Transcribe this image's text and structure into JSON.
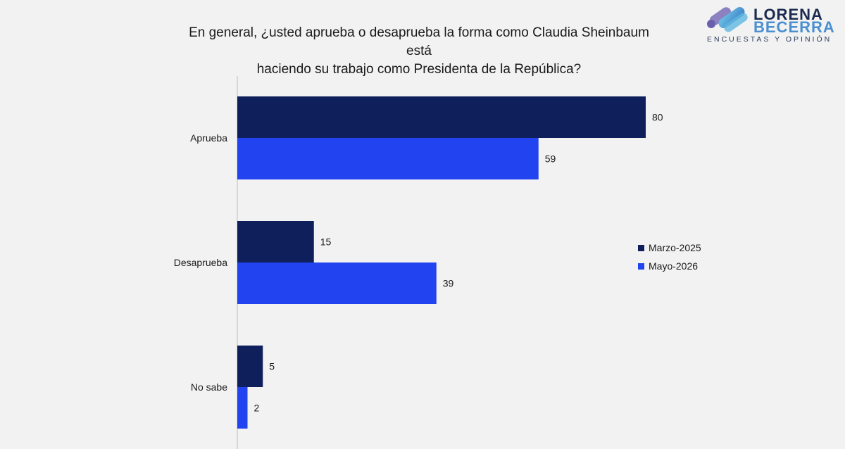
{
  "title_line1": "En general, ¿usted aprueba o desaprueba la forma como Claudia Sheinbaum está",
  "title_line2": "haciendo su trabajo como Presidenta de la República?",
  "logo": {
    "line1": "LORENA",
    "line2": "BECERRA",
    "tagline": "ENCUESTAS Y OPINIÓN"
  },
  "colors": {
    "series_dark": "#0f1f5c",
    "series_bright": "#2143f0",
    "axis": "#bfbfbf"
  },
  "chart_data": {
    "type": "bar",
    "orientation": "horizontal",
    "title": "En general, ¿usted aprueba o desaprueba la forma como Claudia Sheinbaum está haciendo su trabajo como Presidenta de la República?",
    "categories": [
      "Aprueba",
      "Desaprueba",
      "No sabe"
    ],
    "series": [
      {
        "name": "Marzo-2025",
        "values": [
          80,
          15,
          5
        ],
        "color": "#0f1f5c"
      },
      {
        "name": "Mayo-2026",
        "values": [
          59,
          39,
          2
        ],
        "color": "#2143f0"
      }
    ],
    "xlim": [
      0,
      100
    ],
    "xlabel": "",
    "ylabel": "",
    "grid": false,
    "data_labels": true,
    "legend_position": "right"
  }
}
